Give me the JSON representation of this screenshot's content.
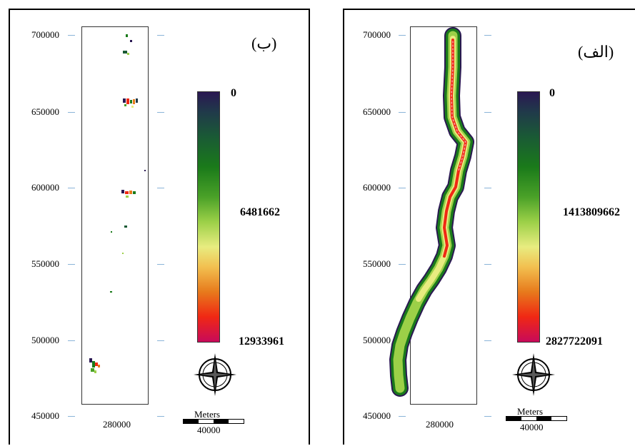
{
  "left_panel": {
    "title": "(ب)",
    "y_labels": [
      "700000",
      "650000",
      "600000",
      "550000",
      "500000",
      "450000"
    ],
    "x_label": "280000",
    "colorbar": {
      "top": "0",
      "middle": "6481662",
      "bottom": "12933961"
    },
    "scale": {
      "unit": "Meters",
      "distance": "40000"
    }
  },
  "right_panel": {
    "title": "(الف)",
    "y_labels": [
      "700000",
      "650000",
      "600000",
      "550000",
      "500000",
      "450000"
    ],
    "x_label": "280000",
    "colorbar": {
      "top": "0",
      "middle": "1413809662",
      "bottom": "2827722091"
    },
    "scale": {
      "unit": "Meters",
      "distance": "40000"
    }
  },
  "colors": {
    "low": "#2a1852",
    "mid": "#e8ec80",
    "high": "#c80a5a",
    "green": "#1a7a1a",
    "red": "#f02814"
  }
}
